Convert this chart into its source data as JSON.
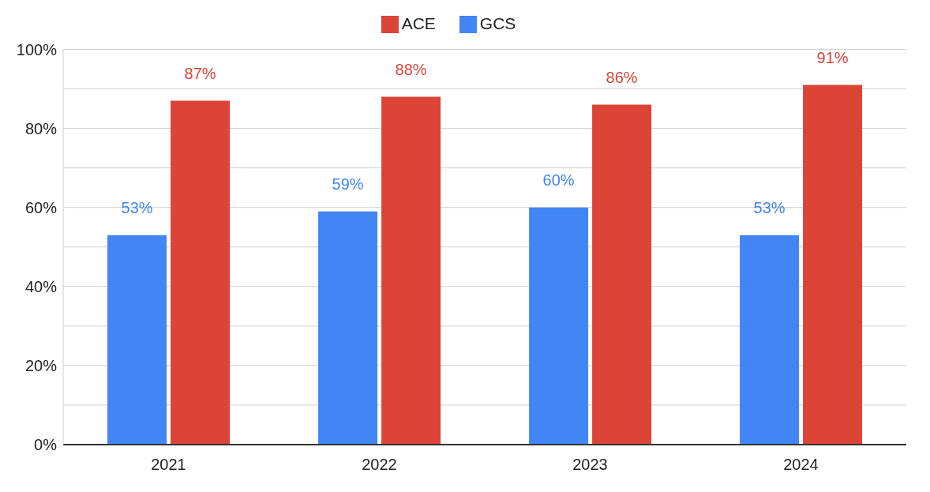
{
  "chart_data": {
    "type": "bar",
    "categories": [
      "2021",
      "2022",
      "2023",
      "2024"
    ],
    "series": [
      {
        "name": "GCS",
        "color": "#4285f4",
        "values": [
          53,
          59,
          60,
          53
        ],
        "value_labels": [
          "53%",
          "59%",
          "60%",
          "53%"
        ]
      },
      {
        "name": "ACE",
        "color": "#db4437",
        "values": [
          87,
          88,
          86,
          91
        ],
        "value_labels": [
          "87%",
          "88%",
          "86%",
          "91%"
        ]
      }
    ],
    "ylim": [
      0,
      100
    ],
    "yticks": [
      {
        "value": 0,
        "label": "0%"
      },
      {
        "value": 10,
        "label": null
      },
      {
        "value": 20,
        "label": "20%"
      },
      {
        "value": 30,
        "label": null
      },
      {
        "value": 40,
        "label": "40%"
      },
      {
        "value": 50,
        "label": null
      },
      {
        "value": 60,
        "label": "60%"
      },
      {
        "value": 70,
        "label": null
      },
      {
        "value": 80,
        "label": "80%"
      },
      {
        "value": 90,
        "label": null
      },
      {
        "value": 100,
        "label": "100%"
      }
    ],
    "grid": "y",
    "legend": "top"
  }
}
